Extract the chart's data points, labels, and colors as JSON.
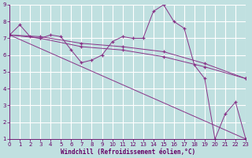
{
  "background_color": "#c0e0e0",
  "grid_color": "#ffffff",
  "line_color": "#883388",
  "marker_color": "#883388",
  "series": [
    {
      "x": [
        0,
        1,
        2,
        3,
        4,
        5,
        6,
        7,
        8,
        9,
        10,
        11,
        12,
        13,
        14,
        15,
        16,
        17,
        18,
        19,
        20,
        21,
        22,
        23
      ],
      "y": [
        7.2,
        7.8,
        7.1,
        7.0,
        7.2,
        7.1,
        6.3,
        5.55,
        5.7,
        6.0,
        6.8,
        7.1,
        7.0,
        7.0,
        8.6,
        9.0,
        8.0,
        7.6,
        5.4,
        4.6,
        1.0,
        2.5,
        3.2,
        1.0
      ]
    },
    {
      "x": [
        0,
        23
      ],
      "y": [
        7.2,
        1.0
      ]
    },
    {
      "x": [
        0,
        3,
        7,
        11,
        15,
        19,
        23
      ],
      "y": [
        7.2,
        7.1,
        6.7,
        6.5,
        6.2,
        5.5,
        4.6
      ]
    },
    {
      "x": [
        0,
        3,
        7,
        11,
        15,
        19,
        23
      ],
      "y": [
        7.2,
        7.0,
        6.5,
        6.3,
        5.9,
        5.3,
        4.6
      ]
    }
  ],
  "xlim": [
    0,
    23
  ],
  "ylim": [
    1,
    9
  ],
  "xticks": [
    0,
    1,
    2,
    3,
    4,
    5,
    6,
    7,
    8,
    9,
    10,
    11,
    12,
    13,
    14,
    15,
    16,
    17,
    18,
    19,
    20,
    21,
    22,
    23
  ],
  "yticks": [
    1,
    2,
    3,
    4,
    5,
    6,
    7,
    8,
    9
  ],
  "xlabel": "Windchill (Refroidissement éolien,°C)"
}
